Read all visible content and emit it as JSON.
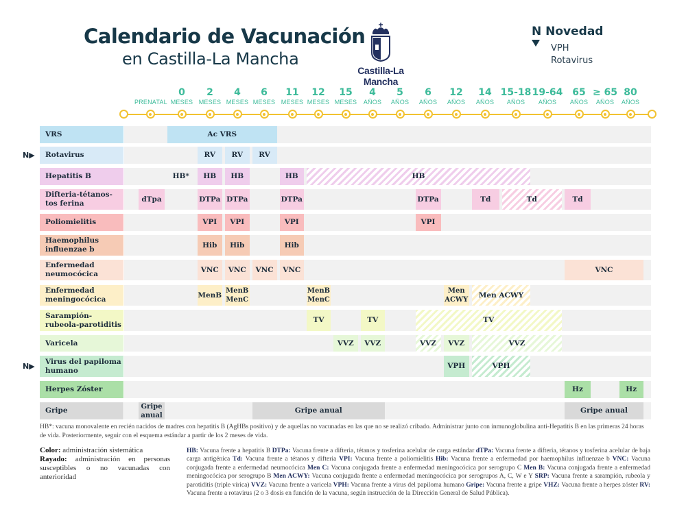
{
  "header": {
    "title_line1": "Calendario de Vacunación",
    "title_line2": "en Castilla-La Mancha",
    "logo_text": "Castilla-La Mancha",
    "novedad_title": "N Novedad",
    "novedad_items": [
      "VPH",
      "Rotavirus"
    ]
  },
  "timeline": [
    {
      "num": "",
      "unit": "PRENATAL"
    },
    {
      "num": "0",
      "unit": "MESES"
    },
    {
      "num": "2",
      "unit": "MESES"
    },
    {
      "num": "4",
      "unit": "MESES"
    },
    {
      "num": "6",
      "unit": "MESES"
    },
    {
      "num": "11",
      "unit": "MESES"
    },
    {
      "num": "12",
      "unit": "MESES"
    },
    {
      "num": "15",
      "unit": "MESES"
    },
    {
      "num": "4",
      "unit": "AÑOS"
    },
    {
      "num": "5",
      "unit": "AÑOS"
    },
    {
      "num": "6",
      "unit": "AÑOS"
    },
    {
      "num": "12",
      "unit": "AÑOS"
    },
    {
      "num": "14",
      "unit": "AÑOS"
    },
    {
      "num": "15-18",
      "unit": "AÑOS"
    },
    {
      "num": "19-64",
      "unit": "AÑOS"
    },
    {
      "num": "65",
      "unit": "AÑOS"
    },
    {
      "num": "≥ 65",
      "unit": "AÑOS"
    },
    {
      "num": "80",
      "unit": "AÑOS"
    }
  ],
  "novedad_marker": "N▶",
  "rows": [
    {
      "label": "VRS",
      "color": "#bfe3f3",
      "novedad": false,
      "cells": [
        {
          "text": "Ac VRS",
          "from": 1,
          "to": 4,
          "style": "solid"
        }
      ]
    },
    {
      "label": "Rotavirus",
      "color": "#d8eaf7",
      "novedad": true,
      "cells": [
        {
          "text": "RV",
          "from": 2,
          "to": 2,
          "style": "solid"
        },
        {
          "text": "RV",
          "from": 3,
          "to": 3,
          "style": "solid"
        },
        {
          "text": "RV",
          "from": 4,
          "to": 4,
          "style": "solid"
        }
      ]
    },
    {
      "label": "Hepatitis B",
      "color": "#efcdec",
      "novedad": false,
      "cells": [
        {
          "text": "HB*",
          "from": 1,
          "to": 1,
          "style": "none"
        },
        {
          "text": "HB",
          "from": 2,
          "to": 2,
          "style": "solid"
        },
        {
          "text": "HB",
          "from": 3,
          "to": 3,
          "style": "solid"
        },
        {
          "text": "HB",
          "from": 5,
          "to": 5,
          "style": "solid"
        },
        {
          "text": "HB",
          "from": 6,
          "to": 13,
          "style": "hatch"
        }
      ]
    },
    {
      "label": "Difteria-tétanos-tos ferina",
      "color": "#f7cde2",
      "novedad": false,
      "cells": [
        {
          "text": "dTpa",
          "from": 0,
          "to": 0,
          "style": "solid"
        },
        {
          "text": "DTPa",
          "from": 2,
          "to": 2,
          "style": "solid"
        },
        {
          "text": "DTPa",
          "from": 3,
          "to": 3,
          "style": "solid"
        },
        {
          "text": "DTPa",
          "from": 5,
          "to": 5,
          "style": "solid"
        },
        {
          "text": "DTPa",
          "from": 10,
          "to": 10,
          "style": "solid"
        },
        {
          "text": "Td",
          "from": 12,
          "to": 12,
          "style": "solid"
        },
        {
          "text": "Td",
          "from": 13,
          "to": 14,
          "style": "hatch"
        },
        {
          "text": "Td",
          "from": 15,
          "to": 15,
          "style": "solid"
        }
      ]
    },
    {
      "label": "Poliomielitis",
      "color": "#f9bcbd",
      "novedad": false,
      "cells": [
        {
          "text": "VPI",
          "from": 2,
          "to": 2,
          "style": "solid"
        },
        {
          "text": "VPI",
          "from": 3,
          "to": 3,
          "style": "solid"
        },
        {
          "text": "VPI",
          "from": 5,
          "to": 5,
          "style": "solid"
        },
        {
          "text": "VPI",
          "from": 10,
          "to": 10,
          "style": "solid"
        }
      ]
    },
    {
      "label": "Haemophilus influenzae b",
      "color": "#f6cbb5",
      "novedad": false,
      "cells": [
        {
          "text": "Hib",
          "from": 2,
          "to": 2,
          "style": "solid"
        },
        {
          "text": "Hib",
          "from": 3,
          "to": 3,
          "style": "solid"
        },
        {
          "text": "Hib",
          "from": 5,
          "to": 5,
          "style": "solid"
        }
      ]
    },
    {
      "label": "Enfermedad neumocócica",
      "color": "#fbe2d6",
      "novedad": false,
      "cells": [
        {
          "text": "VNC",
          "from": 2,
          "to": 2,
          "style": "solid"
        },
        {
          "text": "VNC",
          "from": 3,
          "to": 3,
          "style": "solid"
        },
        {
          "text": "VNC",
          "from": 4,
          "to": 4,
          "style": "solid"
        },
        {
          "text": "VNC",
          "from": 5,
          "to": 5,
          "style": "solid"
        },
        {
          "text": "VNC",
          "from": 15,
          "to": 17,
          "style": "solid"
        }
      ]
    },
    {
      "label": "Enfermedad meningocócica",
      "color": "#fdefc8",
      "novedad": false,
      "cells": [
        {
          "text": "MenB",
          "from": 2,
          "to": 2,
          "style": "solid"
        },
        {
          "text": "MenB MenC",
          "from": 3,
          "to": 3,
          "style": "solid"
        },
        {
          "text": "MenB MenC",
          "from": 6,
          "to": 6,
          "style": "solid"
        },
        {
          "text": "Men ACWY",
          "from": 11,
          "to": 11,
          "style": "solid"
        },
        {
          "text": "Men ACWY",
          "from": 12,
          "to": 13,
          "style": "hatch"
        }
      ]
    },
    {
      "label": "Sarampión-rubeola-parotiditis",
      "color": "#f3f8c6",
      "novedad": false,
      "cells": [
        {
          "text": "TV",
          "from": 6,
          "to": 6,
          "style": "solid"
        },
        {
          "text": "TV",
          "from": 8,
          "to": 8,
          "style": "solid"
        },
        {
          "text": "TV",
          "from": 10,
          "to": 14,
          "style": "hatch"
        }
      ]
    },
    {
      "label": "Varicela",
      "color": "#e6f7d8",
      "novedad": false,
      "cells": [
        {
          "text": "VVZ",
          "from": 7,
          "to": 7,
          "style": "solid"
        },
        {
          "text": "VVZ",
          "from": 8,
          "to": 8,
          "style": "solid"
        },
        {
          "text": "VVZ",
          "from": 10,
          "to": 10,
          "style": "hatch"
        },
        {
          "text": "VVZ",
          "from": 11,
          "to": 11,
          "style": "solid"
        },
        {
          "text": "VVZ",
          "from": 12,
          "to": 14,
          "style": "hatch"
        }
      ]
    },
    {
      "label": "Virus del papiloma humano",
      "color": "#c5ebd0",
      "novedad": true,
      "cells": [
        {
          "text": "VPH",
          "from": 11,
          "to": 11,
          "style": "solid"
        },
        {
          "text": "VPH",
          "from": 12,
          "to": 13,
          "style": "hatch"
        }
      ]
    },
    {
      "label": "Herpes Zóster",
      "color": "#abdfa7",
      "novedad": false,
      "cells": [
        {
          "text": "Hz",
          "from": 15,
          "to": 15,
          "style": "solid"
        },
        {
          "text": "Hz",
          "from": 17,
          "to": 17,
          "style": "solid"
        }
      ]
    },
    {
      "label": "Gripe",
      "color": "#d9d9d9",
      "novedad": false,
      "cells": [
        {
          "text": "Gripe anual",
          "from": 0,
          "to": 0,
          "style": "solid"
        },
        {
          "text": "Gripe anual",
          "from": 4,
          "to": 8,
          "style": "solid"
        },
        {
          "text": "Gripe anual",
          "from": 15,
          "to": 17,
          "style": "solid"
        }
      ]
    }
  ],
  "footnote_hb": "HB*: vacuna monovalente en recién nacidos de madres con hepatitis B (AgHBs positivo) y de aquellas no vacunadas en las que no se realizó cribado. Administrar junto con inmunoglobulina anti-Hepatitis B en las primeras 24 horas de vida. Posteriormente, seguir con el esquema estándar a partir de los 2 meses de vida.",
  "legend": {
    "color_label": "Color:",
    "color_text": " administración sistemática",
    "hatch_label": "Rayado:",
    "hatch_text": " administración en personas susceptibles o no vacunadas con anterioridad"
  },
  "abbreviations": [
    {
      "abbr": "HB:",
      "desc": " Vacuna frente a hepatitis B "
    },
    {
      "abbr": "DTPa:",
      "desc": " Vacuna frente a difteria, tétanos y tosferina acelular de carga estándar "
    },
    {
      "abbr": "dTPa:",
      "desc": " Vacuna frente a difteria, tétanos y tosferina acelular de baja carga antigénica "
    },
    {
      "abbr": "Td:",
      "desc": " Vacuna frente a tétanos y difteria "
    },
    {
      "abbr": "VPI:",
      "desc": " Vacuna frente a poliomielitis "
    },
    {
      "abbr": "Hib:",
      "desc": " Vacuna frente a enfermedad por haemophilus influenzae b "
    },
    {
      "abbr": "VNC:",
      "desc": " Vacuna conjugada frente a enfermedad neumocócica "
    },
    {
      "abbr": "Men C:",
      "desc": " Vacuna conjugada frente a enfermedad meningocócica por serogrupo C "
    },
    {
      "abbr": "Men B:",
      "desc": " Vacuna conjugada frente a enfermedad meningocócica por serogrupo B "
    },
    {
      "abbr": "Men ACWY:",
      "desc": " Vacuna conjugada frente a enfermedad meningocócica por serogrupos A, C, W e Y "
    },
    {
      "abbr": "SRP:",
      "desc": " Vacuna frente a sarampión, rubeola y parotiditis (triple vírica) "
    },
    {
      "abbr": "VVZ:",
      "desc": " Vacuna frente a varicela "
    },
    {
      "abbr": "VPH:",
      "desc": " Vacuna frente a virus del papiloma humano "
    },
    {
      "abbr": "Gripe:",
      "desc": " Vacuna frente a gripe "
    },
    {
      "abbr": "VHZ:",
      "desc": " Vacuna frente a herpes zóster "
    },
    {
      "abbr": "RV:",
      "desc": " Vacuna frente a rotavirus (2 o 3 dosis en función de la vacuna, según instrucción de la Dirección General de Salud Pública)."
    }
  ],
  "colors": {
    "timeline": "#f2c230",
    "age_text": "#3dbb9a",
    "title": "#173848",
    "row_bg": "#f1f1f1"
  }
}
